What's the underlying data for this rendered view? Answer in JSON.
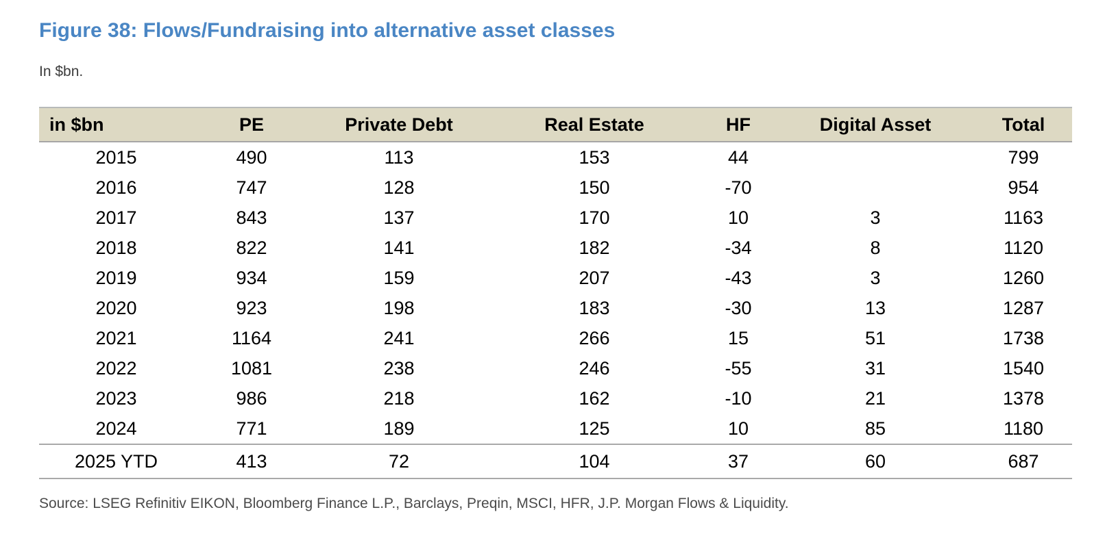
{
  "figure": {
    "title": "Figure 38: Flows/Fundraising into alternative asset classes",
    "subtitle": "In $bn.",
    "source": "Source: LSEG Refinitiv EIKON, Bloomberg Finance L.P., Barclays, Preqin, MSCI, HFR, J.P. Morgan Flows & Liquidity."
  },
  "colors": {
    "title_blue": "#4a86c4",
    "header_beige": "#ddd9c3",
    "header_border_top": "#b7baba",
    "header_border_bottom": "#a6a6a6",
    "row_separator_gray": "#a9a9a9",
    "source_text_gray": "#4b4b4b"
  },
  "table": {
    "columns": [
      "in $bn",
      "PE",
      "Private Debt",
      "Real Estate",
      "HF",
      "Digital Asset",
      "Total"
    ],
    "rows": [
      {
        "cells": [
          "2015",
          "490",
          "113",
          "153",
          "44",
          "",
          "799"
        ]
      },
      {
        "cells": [
          "2016",
          "747",
          "128",
          "150",
          "-70",
          "",
          "954"
        ]
      },
      {
        "cells": [
          "2017",
          "843",
          "137",
          "170",
          "10",
          "3",
          "1163"
        ]
      },
      {
        "cells": [
          "2018",
          "822",
          "141",
          "182",
          "-34",
          "8",
          "1120"
        ]
      },
      {
        "cells": [
          "2019",
          "934",
          "159",
          "207",
          "-43",
          "3",
          "1260"
        ]
      },
      {
        "cells": [
          "2020",
          "923",
          "198",
          "183",
          "-30",
          "13",
          "1287"
        ]
      },
      {
        "cells": [
          "2021",
          "1164",
          "241",
          "266",
          "15",
          "51",
          "1738"
        ]
      },
      {
        "cells": [
          "2022",
          "1081",
          "238",
          "246",
          "-55",
          "31",
          "1540"
        ]
      },
      {
        "cells": [
          "2023",
          "986",
          "218",
          "162",
          "-10",
          "21",
          "1378"
        ]
      },
      {
        "cells": [
          "2024",
          "771",
          "189",
          "125",
          "10",
          "85",
          "1180"
        ]
      },
      {
        "cells": [
          "2025 YTD",
          "413",
          "72",
          "104",
          "37",
          "60",
          "687"
        ],
        "ytd": true
      }
    ]
  },
  "chart_data": {
    "type": "table",
    "title": "Figure 38: Flows/Fundraising into alternative asset classes",
    "units": "$bn",
    "categories": [
      "2015",
      "2016",
      "2017",
      "2018",
      "2019",
      "2020",
      "2021",
      "2022",
      "2023",
      "2024",
      "2025 YTD"
    ],
    "series": [
      {
        "name": "PE",
        "values": [
          490,
          747,
          843,
          822,
          934,
          923,
          1164,
          1081,
          986,
          771,
          413
        ]
      },
      {
        "name": "Private Debt",
        "values": [
          113,
          128,
          137,
          141,
          159,
          198,
          241,
          238,
          218,
          189,
          72
        ]
      },
      {
        "name": "Real Estate",
        "values": [
          153,
          150,
          170,
          182,
          207,
          183,
          266,
          246,
          162,
          125,
          104
        ]
      },
      {
        "name": "HF",
        "values": [
          44,
          -70,
          10,
          -34,
          -43,
          -30,
          15,
          -55,
          -10,
          10,
          37
        ]
      },
      {
        "name": "Digital Asset",
        "values": [
          null,
          null,
          3,
          8,
          3,
          13,
          51,
          31,
          21,
          85,
          60
        ]
      },
      {
        "name": "Total",
        "values": [
          799,
          954,
          1163,
          1120,
          1260,
          1287,
          1738,
          1540,
          1378,
          1180,
          687
        ]
      }
    ]
  }
}
